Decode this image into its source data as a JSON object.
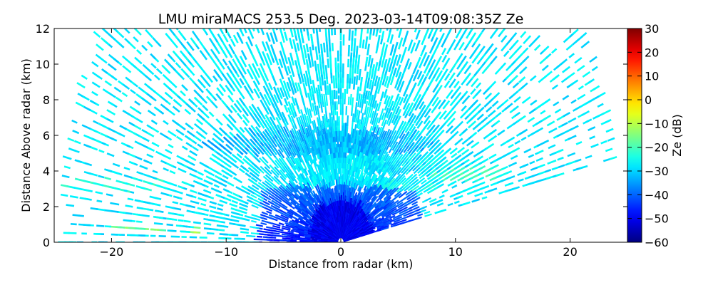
{
  "chart_data": {
    "type": "heatmap",
    "title": "LMU miraMACS 253.5 Deg. 2023-03-14T09:08:35Z  Ze",
    "xlabel": "Distance from radar (km)",
    "ylabel": "Distance Above radar  (km)",
    "xlim": [
      -25,
      25
    ],
    "ylim": [
      0,
      12
    ],
    "xticks": [
      -20,
      -10,
      0,
      10,
      20
    ],
    "yticks": [
      0,
      2,
      4,
      6,
      8,
      10,
      12
    ],
    "grid": false,
    "colorbar": {
      "label": "Ze (dB)",
      "colormap": "jet",
      "range": [
        -60,
        30
      ],
      "ticks": [
        -60,
        -50,
        -40,
        -30,
        -20,
        -10,
        0,
        10,
        20,
        30
      ]
    },
    "scan": {
      "azimuth_deg": 253.5,
      "max_range_km": 24,
      "right_cutoff_elevation_deg": 11,
      "left_cutoff_elevation_deg": 0
    },
    "features": [
      {
        "x": 0,
        "y": 0.6,
        "rx": 2.5,
        "ry": 1.6,
        "ze": -50
      },
      {
        "x": -2,
        "y": 5.4,
        "rx": 10,
        "ry": 0.7,
        "ze": -32
      },
      {
        "x": 6,
        "y": 4.2,
        "rx": 6,
        "ry": 0.5,
        "ze": -28
      },
      {
        "x": 11,
        "y": 3.8,
        "rx": 3.5,
        "ry": 0.45,
        "ze": -22
      },
      {
        "x": 6,
        "y": 3.1,
        "rx": 3,
        "ry": 0.3,
        "ze": -26
      },
      {
        "x": -19,
        "y": 3.2,
        "rx": 5,
        "ry": 0.4,
        "ze": -24
      },
      {
        "x": -17,
        "y": 0.8,
        "rx": 2.5,
        "ry": 0.25,
        "ze": -16
      },
      {
        "x": -12.5,
        "y": 0.65,
        "rx": 0.5,
        "ry": 0.2,
        "ze": -12
      }
    ],
    "background_ze": -28
  }
}
